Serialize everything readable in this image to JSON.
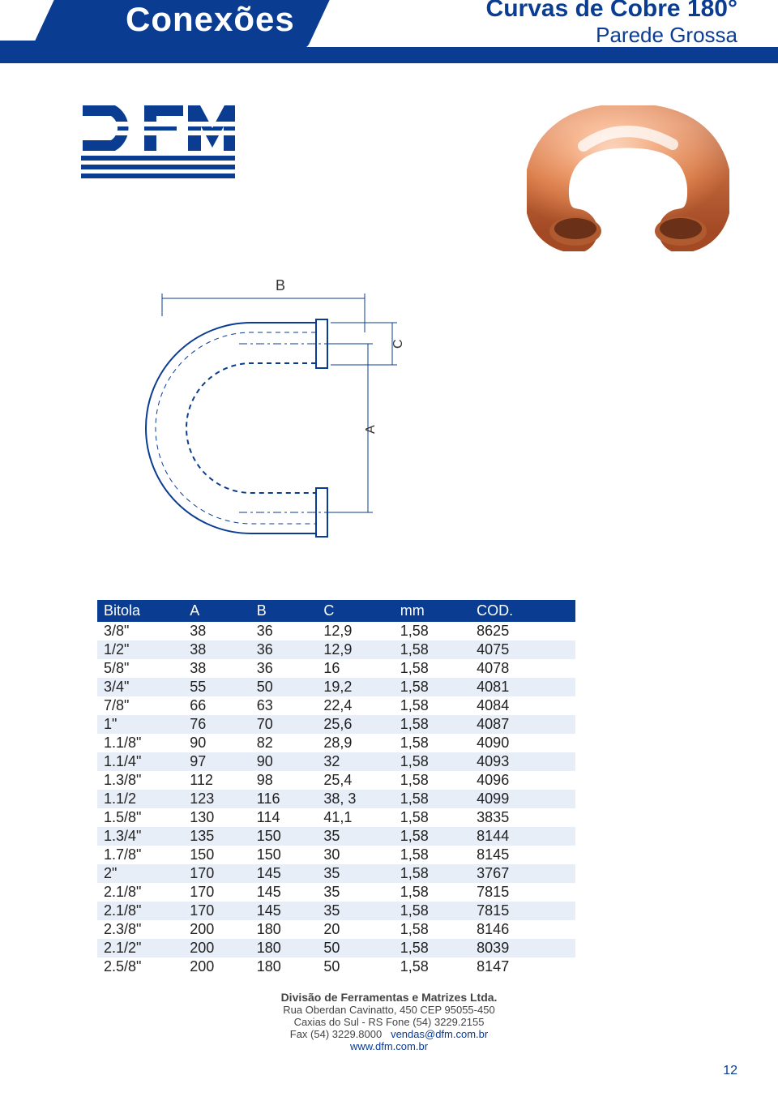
{
  "header": {
    "section": "Conexões",
    "title": "Curvas de Cobre 180°",
    "subtitle": "Parede Grossa"
  },
  "diagram": {
    "label_b": "B",
    "label_a": "A",
    "label_c": "C",
    "stroke": "#0a3d91",
    "fill": "#ffffff"
  },
  "product_colors": {
    "copper_light": "#f4a77a",
    "copper_mid": "#d97b4a",
    "copper_dark": "#a84e28",
    "highlight": "#ffffff"
  },
  "table": {
    "columns": [
      "Bitola",
      "A",
      "B",
      "C",
      "mm",
      "COD."
    ],
    "col_widths": [
      "18%",
      "14%",
      "14%",
      "16%",
      "16%",
      "22%"
    ],
    "rows": [
      [
        "3/8\"",
        "38",
        "36",
        "12,9",
        "1,58",
        "8625"
      ],
      [
        "1/2\"",
        "38",
        "36",
        "12,9",
        "1,58",
        "4075"
      ],
      [
        "5/8\"",
        "38",
        "36",
        "16",
        "1,58",
        "4078"
      ],
      [
        "3/4\"",
        "55",
        "50",
        "19,2",
        "1,58",
        "4081"
      ],
      [
        "7/8\"",
        "66",
        "63",
        "22,4",
        "1,58",
        "4084"
      ],
      [
        "1\"",
        "76",
        "70",
        "25,6",
        "1,58",
        "4087"
      ],
      [
        "1.1/8\"",
        "90",
        "82",
        "28,9",
        "1,58",
        "4090"
      ],
      [
        "1.1/4\"",
        "97",
        "90",
        "32",
        "1,58",
        "4093"
      ],
      [
        "1.3/8\"",
        "112",
        "98",
        "25,4",
        "1,58",
        "4096"
      ],
      [
        "1.1/2",
        "123",
        "116",
        "38, 3",
        "1,58",
        "4099"
      ],
      [
        "1.5/8\"",
        "130",
        "114",
        "41,1",
        "1,58",
        "3835"
      ],
      [
        "1.3/4\"",
        "135",
        "150",
        "35",
        "1,58",
        "8144"
      ],
      [
        "1.7/8\"",
        "150",
        "150",
        "30",
        "1,58",
        "8145"
      ],
      [
        "2\"",
        "170",
        "145",
        "35",
        "1,58",
        "3767"
      ],
      [
        "2.1/8\"",
        "170",
        "145",
        "35",
        "1,58",
        "7815"
      ],
      [
        "2.1/8\"",
        "170",
        "145",
        "35",
        "1,58",
        "7815"
      ],
      [
        "2.3/8\"",
        "200",
        "180",
        "20",
        "1,58",
        "8146"
      ],
      [
        "2.1/2\"",
        "200",
        "180",
        "50",
        "1,58",
        "8039"
      ],
      [
        "2.5/8\"",
        "200",
        "180",
        "50",
        "1,58",
        "8147"
      ]
    ],
    "header_bg": "#0a3d91",
    "header_color": "#ffffff",
    "row_alt_bg": "#e8eef7",
    "font_size": 18
  },
  "footer": {
    "company": "Divisão de Ferramentas e Matrizes Ltda.",
    "addr1": "Rua Oberdan Cavinatto, 450   CEP 95055-450",
    "addr2": "Caxias do Sul - RS   Fone (54) 3229.2155",
    "addr3_left": "Fax (54) 3229.8000",
    "email": "vendas@dfm.com.br",
    "website": "www.dfm.com.br"
  },
  "page_number": "12"
}
